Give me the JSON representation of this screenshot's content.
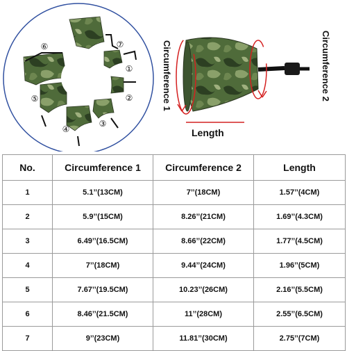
{
  "diagram": {
    "piece_numbers": [
      "①",
      "②",
      "③",
      "④",
      "⑤",
      "⑥",
      "⑦"
    ],
    "labels": {
      "circumference1": "Circumference 1",
      "circumference2": "Circumference 2",
      "length": "Length"
    },
    "colors": {
      "ring_border": "#3050a0",
      "measure_line": "#d42020",
      "camo_base": "#4f6b3a",
      "camo_dark": "#2c3f22",
      "camo_light": "#8aa06a"
    }
  },
  "table": {
    "headers": [
      "No.",
      "Circumference 1",
      "Circumference 2",
      "Length"
    ],
    "rows": [
      [
        "1",
        "5.1’’(13CM)",
        "7’’(18CM)",
        "1.57’’(4CM)"
      ],
      [
        "2",
        "5.9’’(15CM)",
        "8.26’’(21CM)",
        "1.69’’(4.3CM)"
      ],
      [
        "3",
        "6.49’’(16.5CM)",
        "8.66’’(22CM)",
        "1.77’’(4.5CM)"
      ],
      [
        "4",
        "7’’(18CM)",
        "9.44’’(24CM)",
        "1.96’’(5CM)"
      ],
      [
        "5",
        "7.67’’(19.5CM)",
        "10.23’’(26CM)",
        "2.16’’(5.5CM)"
      ],
      [
        "6",
        "8.46’’(21.5CM)",
        "11’’(28CM)",
        "2.55’’(6.5CM)"
      ],
      [
        "7",
        "9’’(23CM)",
        "11.81’’(30CM)",
        "2.75’’(7CM)"
      ]
    ]
  }
}
